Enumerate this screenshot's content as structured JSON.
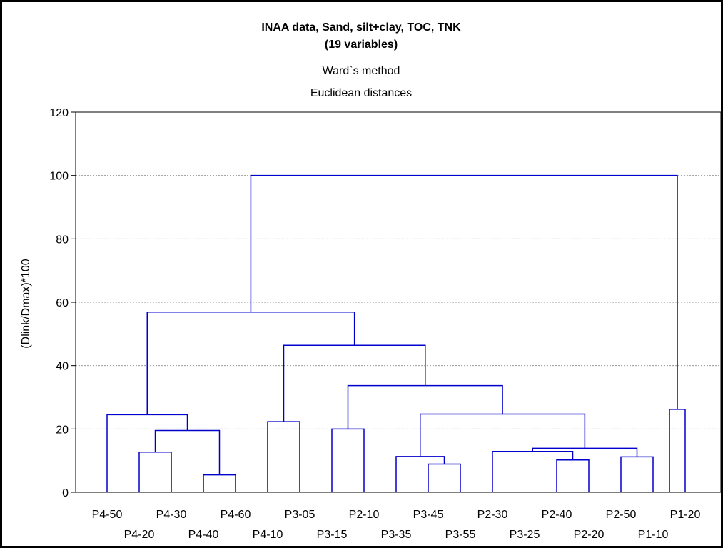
{
  "chart_data": {
    "type": "dendrogram",
    "title_line1": "INAA data, Sand, silt+clay, TOC, TNK",
    "title_line2": "(19 variables)",
    "subtitle_line1": "Ward`s method",
    "subtitle_line2": "Euclidean distances",
    "ylabel": "(Dlink/Dmax)*100",
    "ylim": [
      0,
      120
    ],
    "y_ticks": [
      "0",
      "20",
      "40",
      "60",
      "80",
      "100",
      "120"
    ],
    "grid": true,
    "line_color": "#0000cc",
    "leaves": [
      "P4-50",
      "P4-20",
      "P4-30",
      "P4-40",
      "P4-60",
      "P4-10",
      "P3-05",
      "P3-15",
      "P2-10",
      "P3-35",
      "P3-45",
      "P3-55",
      "P2-30",
      "P3-25",
      "P2-40",
      "P2-20",
      "P2-50",
      "P1-10",
      "P1-20"
    ],
    "merges": [
      {
        "a": "P4-40",
        "b": "P4-60",
        "height": 5.5
      },
      {
        "a": "P4-20",
        "b": "P4-30",
        "height": 12.7
      },
      {
        "a": "P4-20+P4-30",
        "b": "P4-40+P4-60",
        "height": 19.5
      },
      {
        "a": "P4-50",
        "b": "P4-20..P4-60",
        "height": 24.5
      },
      {
        "a": "P4-10",
        "b": "P3-05",
        "height": 22.3
      },
      {
        "a": "P3-15",
        "b": "P2-10",
        "height": 20
      },
      {
        "a": "P3-45",
        "b": "P3-55",
        "height": 8.9
      },
      {
        "a": "P3-35",
        "b": "P3-45+P3-55",
        "height": 11.3
      },
      {
        "a": "P2-40",
        "b": "P2-20",
        "height": 10.2
      },
      {
        "a": "P2-50",
        "b": "P1-10",
        "height": 11.2
      },
      {
        "a": "P3-25",
        "b": "P2-40+P2-20",
        "height": 12.9
      },
      {
        "a": "P2-30..P2-20",
        "b": "P2-50+P1-10",
        "height": 13.9
      },
      {
        "a": "P3-35..P3-55",
        "b": "P2-30..P1-10",
        "height": 24.7
      },
      {
        "a": "P3-15+P2-10",
        "b": "P3-35..P1-10",
        "height": 33.7
      },
      {
        "a": "P4-10+P3-05",
        "b": "P3-15..P1-10",
        "height": 46.4
      },
      {
        "a": "P4-50..P4-60",
        "b": "P4-10..P1-10",
        "height": 56.9
      },
      {
        "a": "P1-20",
        "b": "P1-20 (self)",
        "height": 26.2
      },
      {
        "a": "P4-50..P1-10",
        "b": "P1-20",
        "height": 100
      }
    ]
  }
}
